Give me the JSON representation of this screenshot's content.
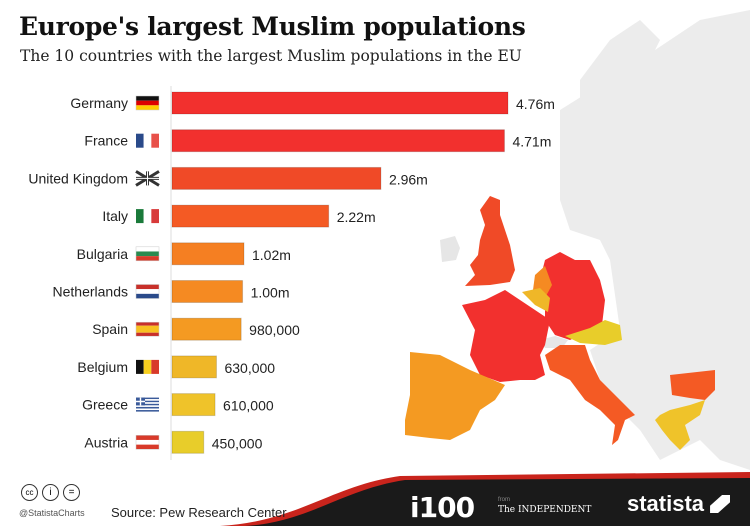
{
  "header": {
    "title": "Europe's largest Muslim populations",
    "subtitle": "The 10 countries with the largest Muslim populations in the EU"
  },
  "chart_data": {
    "type": "bar",
    "orientation": "horizontal",
    "title": "Europe's largest Muslim populations",
    "subtitle": "The 10 countries with the largest Muslim populations in the EU",
    "categories": [
      "Germany",
      "France",
      "United Kingdom",
      "Italy",
      "Bulgaria",
      "Netherlands",
      "Spain",
      "Belgium",
      "Greece",
      "Austria"
    ],
    "values": [
      4760000,
      4710000,
      2960000,
      2220000,
      1020000,
      1000000,
      980000,
      630000,
      610000,
      450000
    ],
    "labels": [
      "4.76m",
      "4.71m",
      "2.96m",
      "2.22m",
      "1.02m",
      "1.00m",
      "980,000",
      "630,000",
      "610,000",
      "450,000"
    ],
    "colors": [
      "#f2302e",
      "#f2302e",
      "#f04a27",
      "#f45a24",
      "#f57f22",
      "#f58a22",
      "#f49a22",
      "#efb728",
      "#efc32a",
      "#e8cd2a"
    ],
    "flags": [
      "germany-flag",
      "france-flag",
      "uk-flag",
      "italy-flag",
      "bulgaria-flag",
      "netherlands-flag",
      "spain-flag",
      "belgium-flag",
      "greece-flag",
      "austria-flag"
    ],
    "xlim": [
      0,
      4760000
    ],
    "grid": false,
    "legend": "none"
  },
  "footer": {
    "handle": "@StatistaCharts",
    "source": "Source: Pew Research Center",
    "i100": "i100",
    "from": "from",
    "independent": "The INDEPENDENT",
    "statista": "statista"
  }
}
